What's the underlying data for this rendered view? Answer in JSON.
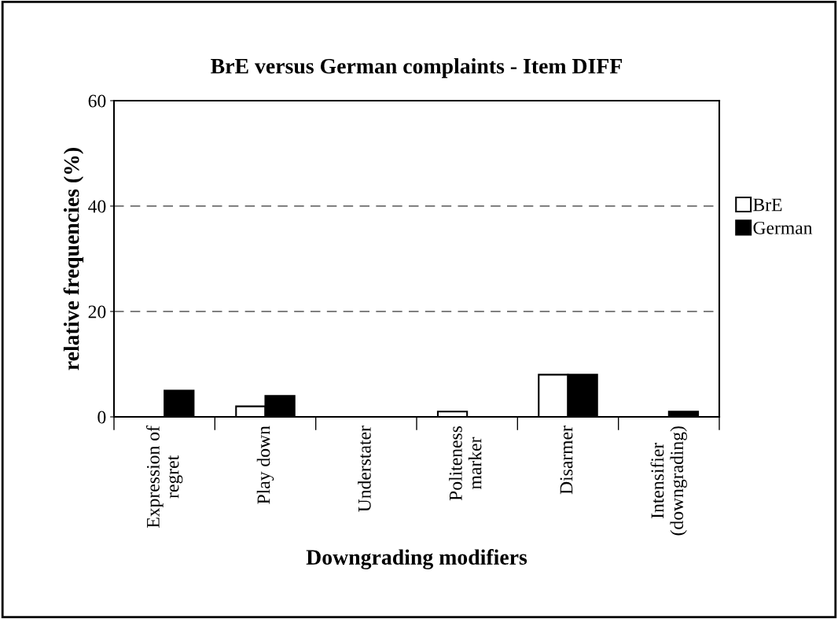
{
  "chart_data": {
    "type": "bar",
    "title": "BrE versus German complaints - Item DIFF",
    "xlabel": "Downgrading modifiers",
    "ylabel": "relative frequencies (%)",
    "categories": [
      "Expression of\nregret",
      "Play down",
      "Understater",
      "Politeness\nmarker",
      "Disarmer",
      "Intensifier\n(downgrading)"
    ],
    "series": [
      {
        "name": "BrE",
        "color": "#ffffff",
        "values": [
          null,
          2,
          null,
          1,
          8,
          null
        ]
      },
      {
        "name": "German",
        "color": "#000000",
        "values": [
          5,
          4,
          null,
          null,
          8,
          1
        ]
      }
    ],
    "ylim": [
      0,
      60
    ],
    "yticks": [
      0,
      20,
      40,
      60
    ],
    "grid": "y",
    "legend": "right"
  }
}
